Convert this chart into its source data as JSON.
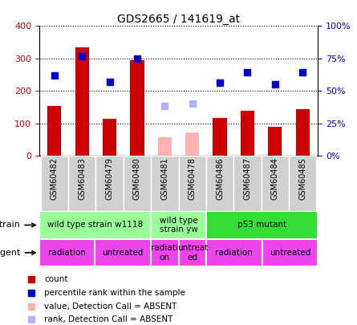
{
  "title": "GDS2665 / 141619_at",
  "samples": [
    "GSM60482",
    "GSM60483",
    "GSM60479",
    "GSM60480",
    "GSM60481",
    "GSM60478",
    "GSM60486",
    "GSM60487",
    "GSM60484",
    "GSM60485"
  ],
  "count_values": [
    155,
    335,
    115,
    295,
    null,
    null,
    118,
    140,
    90,
    145
  ],
  "count_absent": [
    null,
    null,
    null,
    null,
    58,
    72,
    null,
    null,
    null,
    null
  ],
  "rank_values": [
    248,
    308,
    228,
    300,
    null,
    null,
    225,
    258,
    220,
    258
  ],
  "rank_absent": [
    null,
    null,
    null,
    null,
    155,
    162,
    null,
    null,
    null,
    null
  ],
  "count_color": "#cc0000",
  "count_absent_color": "#ffb3b3",
  "rank_color": "#0000cc",
  "rank_absent_color": "#b3b3ff",
  "ylim": [
    0,
    400
  ],
  "yticks": [
    0,
    100,
    200,
    300,
    400
  ],
  "ytick_labels_left": [
    "0",
    "100",
    "200",
    "300",
    "400"
  ],
  "ytick_labels_right": [
    "0%",
    "25%",
    "50%",
    "75%",
    "100%"
  ],
  "strain_groups": [
    {
      "label": "wild type strain w1118",
      "start": 0,
      "end": 4,
      "color": "#99ff99"
    },
    {
      "label": "wild type\nstrain yw",
      "start": 4,
      "end": 6,
      "color": "#99ff99"
    },
    {
      "label": "p53 mutant",
      "start": 6,
      "end": 10,
      "color": "#33dd33"
    }
  ],
  "agent_groups": [
    {
      "label": "radiation",
      "start": 0,
      "end": 2,
      "color": "#ee44ee"
    },
    {
      "label": "untreated",
      "start": 2,
      "end": 4,
      "color": "#ee44ee"
    },
    {
      "label": "radiati\non",
      "start": 4,
      "end": 5,
      "color": "#ee44ee"
    },
    {
      "label": "untreat\ned",
      "start": 5,
      "end": 6,
      "color": "#ee44ee"
    },
    {
      "label": "radiation",
      "start": 6,
      "end": 8,
      "color": "#ee44ee"
    },
    {
      "label": "untreated",
      "start": 8,
      "end": 10,
      "color": "#ee44ee"
    }
  ],
  "legend_items": [
    {
      "label": "count",
      "color": "#cc0000"
    },
    {
      "label": "percentile rank within the sample",
      "color": "#0000cc"
    },
    {
      "label": "value, Detection Call = ABSENT",
      "color": "#ffb3b3"
    },
    {
      "label": "rank, Detection Call = ABSENT",
      "color": "#b3b3ff"
    }
  ],
  "strain_label": "strain",
  "agent_label": "agent",
  "tick_color_left": "#cc0000",
  "tick_color_right": "#0000cc",
  "xlabel_bg": "#d0d0d0",
  "bar_width": 0.5,
  "marker_size": 6
}
